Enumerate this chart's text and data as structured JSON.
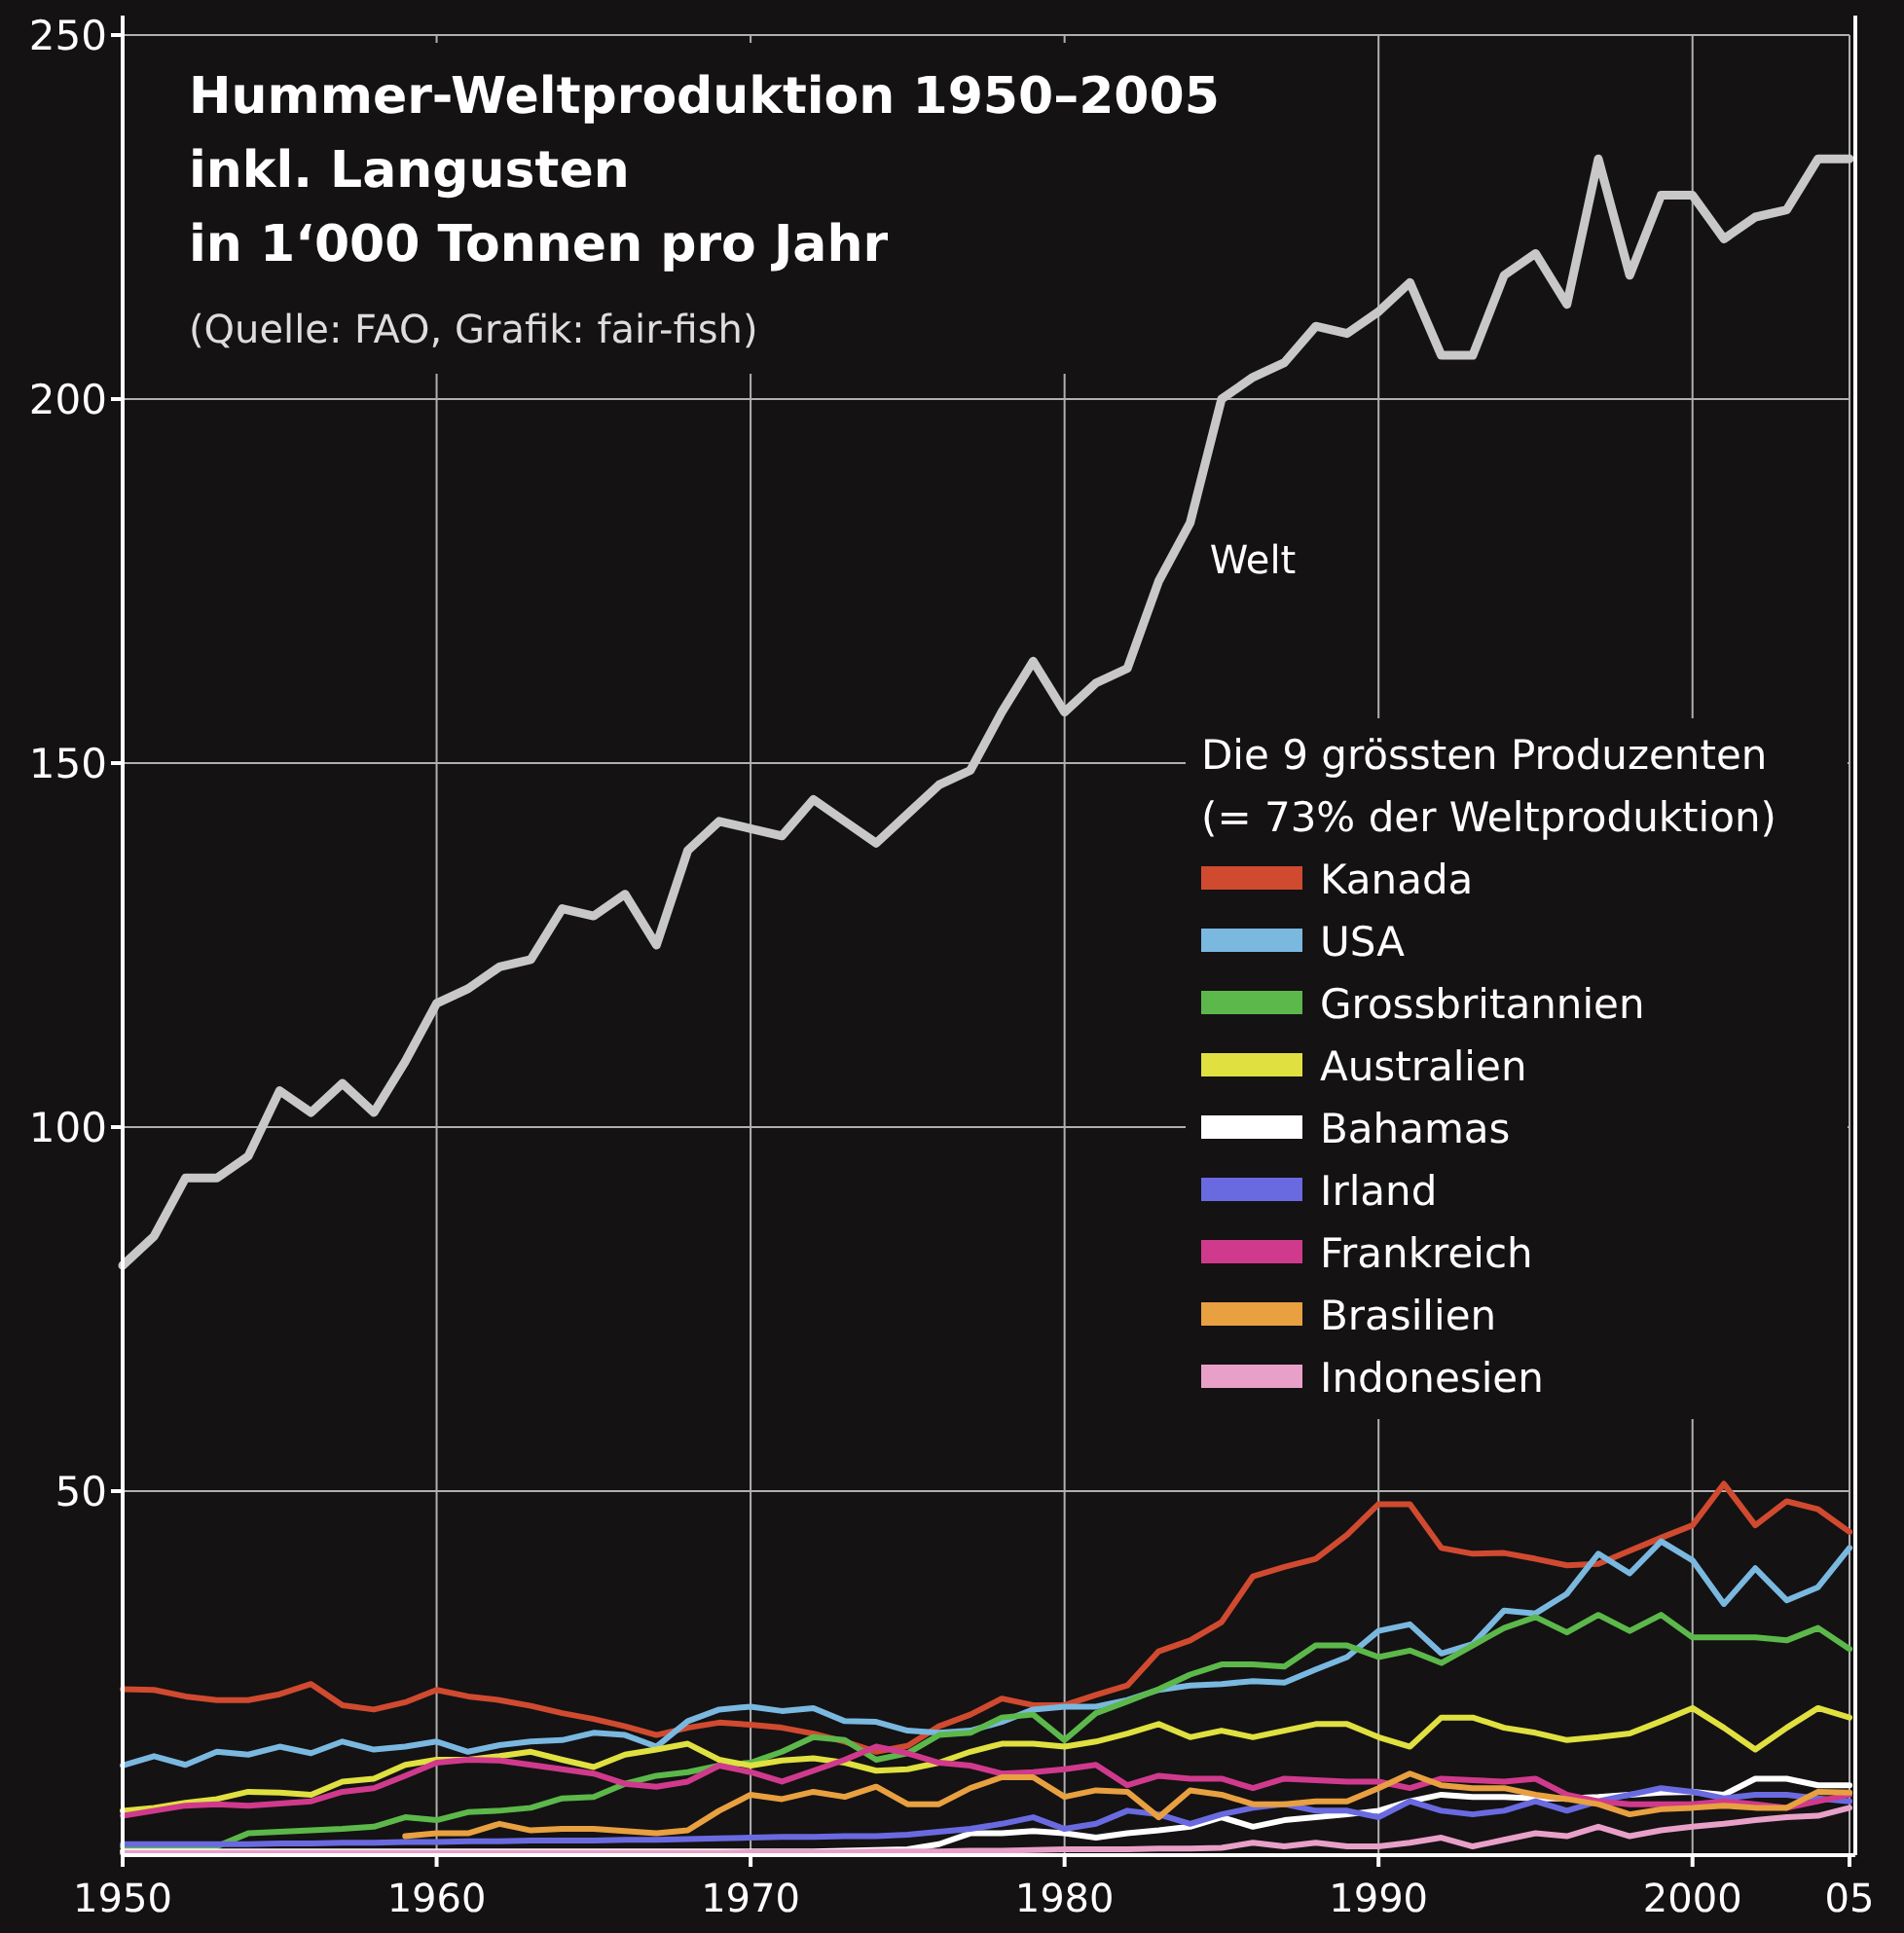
{
  "chart_data": {
    "type": "line",
    "title": "Hummer-Weltproduktion 1950–2005\ninkl. Langusten\nin 1‘000 Tonnen pro Jahr",
    "subtitle": "(Quelle: FAO, Grafik: fair-fish)",
    "legend_title": "Die 9 grössten Produzenten\n(= 73% der Weltproduktion)",
    "legend": "right",
    "grid": true,
    "line_style": "solid",
    "x": [
      1950,
      1951,
      1952,
      1953,
      1954,
      1955,
      1956,
      1957,
      1958,
      1959,
      1960,
      1961,
      1962,
      1963,
      1964,
      1965,
      1966,
      1967,
      1968,
      1969,
      1970,
      1971,
      1972,
      1973,
      1974,
      1975,
      1976,
      1977,
      1978,
      1979,
      1980,
      1981,
      1982,
      1983,
      1984,
      1985,
      1986,
      1987,
      1988,
      1989,
      1990,
      1991,
      1992,
      1993,
      1994,
      1995,
      1996,
      1997,
      1998,
      1999,
      2000,
      2001,
      2002,
      2003,
      2004,
      2005
    ],
    "xlim": [
      1950,
      2005
    ],
    "xticks": [
      1950,
      1960,
      1970,
      1980,
      1990,
      2000,
      {
        "value": 2005,
        "label": "05"
      }
    ],
    "ylim": [
      0,
      250
    ],
    "yticks": [
      50,
      100,
      150,
      200,
      250
    ],
    "series": [
      {
        "name": "Welt",
        "color": "#c8c8c8",
        "values": [
          81,
          85,
          93,
          93,
          96,
          105,
          102,
          106,
          102,
          109,
          117,
          119,
          122,
          123,
          130,
          129,
          132,
          125,
          138,
          142,
          141,
          140,
          145,
          142,
          139,
          143,
          147,
          149,
          157,
          164,
          157,
          161,
          163,
          175,
          183,
          200,
          203,
          205,
          210,
          209,
          212,
          216,
          206,
          206,
          217,
          220,
          213,
          233,
          217,
          228,
          228,
          222,
          225,
          226,
          233,
          233
        ]
      },
      {
        "name": "Kanada",
        "color": "#d04a30",
        "values": [
          22.8,
          22.7,
          21.8,
          21.3,
          21.3,
          22.1,
          23.5,
          20.6,
          20,
          21,
          22.7,
          21.8,
          21.3,
          20.5,
          19.5,
          18.7,
          17.7,
          16.5,
          17.5,
          18.2,
          17.9,
          17.5,
          16.7,
          15.6,
          14.2,
          15,
          17.7,
          19.3,
          21.5,
          20.6,
          20.6,
          22,
          23.3,
          28,
          29.5,
          32,
          38.3,
          39.6,
          40.7,
          44,
          48.2,
          48.2,
          42.2,
          41.4,
          41.5,
          40.7,
          39.8,
          40,
          41.8,
          43.6,
          45.3,
          51,
          45.3,
          48.6,
          47.5,
          44.4
        ]
      },
      {
        "name": "USA",
        "color": "#7ab8e0",
        "values": [
          12.3,
          13.6,
          12.4,
          14.2,
          13.8,
          14.9,
          14,
          15.6,
          14.5,
          14.9,
          15.6,
          14.2,
          15.1,
          15.6,
          15.8,
          16.8,
          16.5,
          14.9,
          18.4,
          20,
          20.4,
          19.8,
          20.2,
          18.4,
          18.3,
          17.1,
          16.8,
          17.1,
          18.3,
          20,
          20.4,
          20.4,
          21.3,
          22.7,
          23.3,
          23.5,
          23.9,
          23.7,
          25.5,
          27.2,
          30.8,
          31.7,
          27.7,
          29,
          33.6,
          33.2,
          35.9,
          41.4,
          38.7,
          43.1,
          40.5,
          34.5,
          39.4,
          35,
          36.8,
          42.2
        ]
      },
      {
        "name": "Grossbritannien",
        "color": "#5cb84a",
        "values": [
          1.2,
          1.2,
          1.2,
          1.2,
          3,
          3.2,
          3.4,
          3.6,
          3.9,
          5.2,
          4.8,
          5.9,
          6.1,
          6.5,
          7.8,
          8,
          9.8,
          10.9,
          11.4,
          12.3,
          12.7,
          14.2,
          16.2,
          15.8,
          13.1,
          14,
          16.5,
          16.8,
          18.9,
          19.3,
          15.8,
          19.5,
          21.1,
          22.8,
          24.8,
          26.2,
          26.2,
          25.9,
          28.8,
          28.8,
          27.2,
          28.1,
          26.4,
          28.8,
          31.2,
          32.7,
          30.6,
          33,
          30.8,
          33,
          29.9,
          29.9,
          29.9,
          29.5,
          31.2,
          28.3
        ]
      },
      {
        "name": "Australien",
        "color": "#e0e040",
        "values": [
          6.1,
          6.5,
          7.2,
          7.7,
          8.7,
          8.6,
          8.3,
          10.1,
          10.5,
          12.4,
          13.1,
          13.1,
          13.6,
          14.2,
          13.1,
          12.1,
          13.8,
          14.5,
          15.3,
          13.1,
          12.3,
          13,
          13.3,
          12.7,
          11.6,
          11.8,
          12.7,
          14.2,
          15.3,
          15.3,
          14.9,
          15.6,
          16.7,
          18,
          16.2,
          17.1,
          16.2,
          17.1,
          18,
          18,
          16.2,
          14.9,
          18.9,
          18.9,
          17.5,
          16.8,
          15.8,
          16.2,
          16.7,
          18.4,
          20.2,
          17.5,
          14.5,
          17.5,
          20.2,
          18.9
        ]
      },
      {
        "name": "Bahamas",
        "color": "#ffffff",
        "values": [
          0.5,
          0.5,
          0.5,
          0.5,
          0.5,
          0.5,
          0.5,
          0.5,
          0.5,
          0.5,
          0.5,
          0.5,
          0.5,
          0.5,
          0.5,
          0.5,
          0.5,
          0.5,
          0.5,
          0.5,
          0.5,
          0.5,
          0.5,
          0.6,
          0.7,
          0.8,
          1.5,
          3,
          3,
          3.3,
          3,
          2.4,
          3,
          3.4,
          3.9,
          5.2,
          3.9,
          4.8,
          5.2,
          5.6,
          6.1,
          7.4,
          8.3,
          8,
          8,
          7.8,
          7.8,
          8,
          8.3,
          8.6,
          8.7,
          8.3,
          10.5,
          10.5,
          9.6,
          9.6
        ]
      },
      {
        "name": "Irland",
        "color": "#6a6ae0",
        "values": [
          1.5,
          1.5,
          1.5,
          1.5,
          1.5,
          1.6,
          1.6,
          1.7,
          1.7,
          1.8,
          1.8,
          1.9,
          1.9,
          2,
          2,
          2,
          2.1,
          2.1,
          2.2,
          2.3,
          2.4,
          2.5,
          2.5,
          2.6,
          2.6,
          2.8,
          3.2,
          3.6,
          4.3,
          5.2,
          3.6,
          4.3,
          6.1,
          5.6,
          4.3,
          5.6,
          6.5,
          7,
          6.1,
          6.1,
          5.2,
          7.4,
          6.1,
          5.6,
          6.1,
          7.4,
          6.1,
          7.4,
          8.3,
          9.2,
          8.7,
          7.8,
          8.3,
          8.3,
          7.8,
          7.4
        ]
      },
      {
        "name": "Frankreich",
        "color": "#d03a8c",
        "values": [
          5.4,
          6.1,
          6.8,
          7,
          6.8,
          7.1,
          7.4,
          8.7,
          9.2,
          10.9,
          12.7,
          13.1,
          13,
          12.4,
          11.8,
          11.2,
          9.8,
          9.4,
          10.1,
          12.3,
          11.4,
          10.1,
          11.6,
          13.1,
          14.9,
          14,
          12.7,
          12.3,
          11.2,
          11.4,
          11.8,
          12.4,
          9.6,
          10.9,
          10.5,
          10.5,
          9.2,
          10.5,
          10.3,
          10.1,
          10.1,
          9.2,
          10.5,
          10.3,
          10.1,
          10.5,
          8.3,
          7.4,
          7,
          7,
          7,
          7.4,
          7,
          6.5,
          7.4,
          8.3
        ]
      },
      {
        "name": "Brasilien",
        "color": "#e8a040",
        "values": [
          null,
          null,
          null,
          null,
          null,
          null,
          null,
          null,
          null,
          2.6,
          3,
          3,
          4.3,
          3.4,
          3.6,
          3.6,
          3.3,
          3,
          3.4,
          6.1,
          8.3,
          7.7,
          8.7,
          8,
          9.4,
          7,
          7,
          9.2,
          10.7,
          10.7,
          8,
          8.9,
          8.7,
          5.2,
          8.9,
          8.3,
          7,
          7,
          7.4,
          7.4,
          9.2,
          11.2,
          9.6,
          9.2,
          9.2,
          8.3,
          7.7,
          7,
          5.6,
          6.3,
          6.5,
          6.8,
          6.5,
          6.5,
          8.7,
          8.6
        ]
      },
      {
        "name": "Indonesien",
        "color": "#e8a0c8",
        "values": [
          0.3,
          0.3,
          0.3,
          0.3,
          0.3,
          0.3,
          0.3,
          0.3,
          0.3,
          0.3,
          0.3,
          0.3,
          0.3,
          0.3,
          0.3,
          0.3,
          0.3,
          0.3,
          0.3,
          0.3,
          0.4,
          0.4,
          0.4,
          0.4,
          0.5,
          0.5,
          0.5,
          0.6,
          0.6,
          0.7,
          0.8,
          0.8,
          0.8,
          0.9,
          0.9,
          1,
          1.7,
          1.2,
          1.7,
          1.2,
          1.2,
          1.7,
          2.4,
          1.2,
          2.1,
          3,
          2.6,
          3.9,
          2.6,
          3.4,
          3.9,
          4.3,
          4.8,
          5.2,
          5.4,
          6.5
        ]
      }
    ]
  }
}
